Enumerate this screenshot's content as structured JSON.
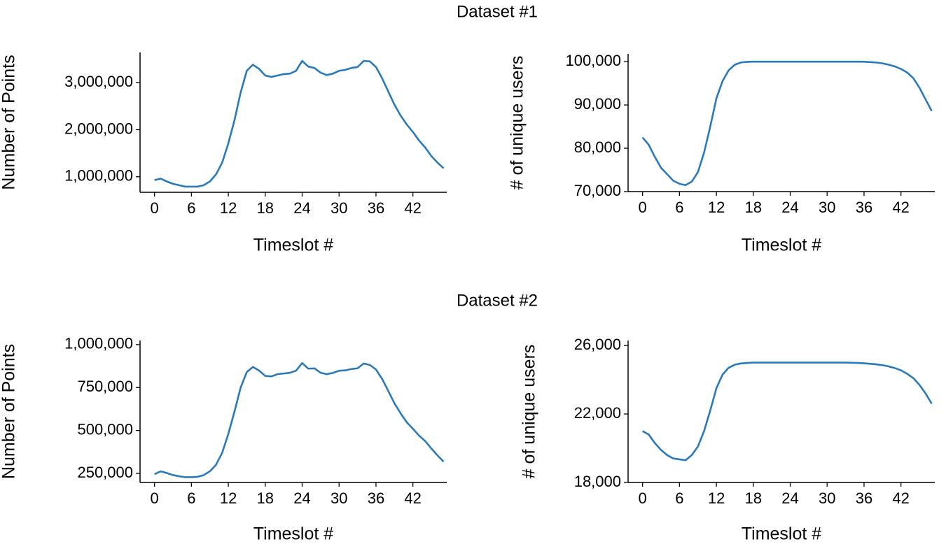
{
  "titles": [
    "Dataset #1",
    "Dataset #2"
  ],
  "chart_data": [
    {
      "type": "line",
      "xlabel": "Timeslot #",
      "ylabel": "Number of Points",
      "color": "#2a7ab9",
      "x": [
        0,
        1,
        2,
        3,
        4,
        5,
        6,
        7,
        8,
        9,
        10,
        11,
        12,
        13,
        14,
        15,
        16,
        17,
        18,
        19,
        20,
        21,
        22,
        23,
        24,
        25,
        26,
        27,
        28,
        29,
        30,
        31,
        32,
        33,
        34,
        35,
        36,
        37,
        38,
        39,
        40,
        41,
        42,
        43,
        44,
        45,
        46,
        47
      ],
      "values": [
        930000,
        960000,
        900000,
        850000,
        820000,
        790000,
        790000,
        790000,
        820000,
        900000,
        1050000,
        1300000,
        1710000,
        2200000,
        2790000,
        3250000,
        3380000,
        3290000,
        3150000,
        3120000,
        3150000,
        3180000,
        3190000,
        3250000,
        3460000,
        3340000,
        3310000,
        3210000,
        3160000,
        3190000,
        3250000,
        3270000,
        3310000,
        3330000,
        3460000,
        3450000,
        3330000,
        3090000,
        2810000,
        2530000,
        2300000,
        2110000,
        1950000,
        1770000,
        1620000,
        1440000,
        1300000,
        1180000
      ],
      "xlim": [
        -2.35,
        47.5
      ],
      "ylim": [
        670000,
        3640000
      ],
      "xticks": [
        0,
        6,
        12,
        18,
        24,
        30,
        36,
        42
      ],
      "yticks": [
        {
          "value": 1000000,
          "label": "1,000,000"
        },
        {
          "value": 2000000,
          "label": "2,000,000"
        },
        {
          "value": 3000000,
          "label": "3,000,000"
        }
      ]
    },
    {
      "type": "line",
      "xlabel": "Timeslot #",
      "ylabel": "# of unique users",
      "color": "#2a7ab9",
      "x": [
        0,
        1,
        2,
        3,
        4,
        5,
        6,
        7,
        8,
        9,
        10,
        11,
        12,
        13,
        14,
        15,
        16,
        17,
        18,
        19,
        20,
        21,
        22,
        23,
        24,
        25,
        26,
        27,
        28,
        29,
        30,
        31,
        32,
        33,
        34,
        35,
        36,
        37,
        38,
        39,
        40,
        41,
        42,
        43,
        44,
        45,
        46,
        47
      ],
      "values": [
        82500,
        80800,
        78000,
        75500,
        74000,
        72500,
        71800,
        71500,
        72300,
        74500,
        79000,
        85000,
        91500,
        95500,
        98000,
        99300,
        99800,
        99950,
        100000,
        100000,
        100000,
        100000,
        100000,
        100000,
        100000,
        100000,
        100000,
        100000,
        100000,
        100000,
        100000,
        100000,
        100000,
        100000,
        100000,
        100000,
        99980,
        99900,
        99800,
        99600,
        99300,
        98900,
        98300,
        97500,
        96200,
        94000,
        91300,
        88600
      ],
      "xlim": [
        -2.35,
        47.5
      ],
      "ylim": [
        70000,
        101800
      ],
      "xticks": [
        0,
        6,
        12,
        18,
        24,
        30,
        36,
        42
      ],
      "yticks": [
        {
          "value": 70000,
          "label": "70,000"
        },
        {
          "value": 80000,
          "label": "80,000"
        },
        {
          "value": 90000,
          "label": "90,000"
        },
        {
          "value": 100000,
          "label": "100,000"
        }
      ]
    },
    {
      "type": "line",
      "xlabel": "Timeslot #",
      "ylabel": "Number of Points",
      "color": "#2a7ab9",
      "x": [
        0,
        1,
        2,
        3,
        4,
        5,
        6,
        7,
        8,
        9,
        10,
        11,
        12,
        13,
        14,
        15,
        16,
        17,
        18,
        19,
        20,
        21,
        22,
        23,
        24,
        25,
        26,
        27,
        28,
        29,
        30,
        31,
        32,
        33,
        34,
        35,
        36,
        37,
        38,
        39,
        40,
        41,
        42,
        43,
        44,
        45,
        46,
        47
      ],
      "values": [
        245000,
        262000,
        252000,
        240000,
        233000,
        228000,
        228000,
        230000,
        240000,
        262000,
        300000,
        370000,
        480000,
        610000,
        750000,
        840000,
        870000,
        849000,
        818000,
        815000,
        828000,
        832000,
        836000,
        848000,
        893000,
        860000,
        862000,
        836000,
        828000,
        835000,
        848000,
        850000,
        858000,
        862000,
        890000,
        882000,
        855000,
        800000,
        730000,
        658000,
        600000,
        548000,
        510000,
        470000,
        438000,
        395000,
        355000,
        318000
      ],
      "xlim": [
        -2.35,
        47.5
      ],
      "ylim": [
        197000,
        1024000
      ],
      "xticks": [
        0,
        6,
        12,
        18,
        24,
        30,
        36,
        42
      ],
      "yticks": [
        {
          "value": 250000,
          "label": "250,000"
        },
        {
          "value": 500000,
          "label": "500,000"
        },
        {
          "value": 750000,
          "label": "750,000"
        },
        {
          "value": 1000000,
          "label": "1,000,000"
        }
      ]
    },
    {
      "type": "line",
      "xlabel": "Timeslot #",
      "ylabel": "# of unique users",
      "color": "#2a7ab9",
      "x": [
        0,
        1,
        2,
        3,
        4,
        5,
        6,
        7,
        8,
        9,
        10,
        11,
        12,
        13,
        14,
        15,
        16,
        17,
        18,
        19,
        20,
        21,
        22,
        23,
        24,
        25,
        26,
        27,
        28,
        29,
        30,
        31,
        32,
        33,
        34,
        35,
        36,
        37,
        38,
        39,
        40,
        41,
        42,
        43,
        44,
        45,
        46,
        47
      ],
      "values": [
        21000,
        20800,
        20300,
        19900,
        19600,
        19400,
        19350,
        19300,
        19600,
        20100,
        21000,
        22200,
        23500,
        24300,
        24700,
        24880,
        24950,
        24980,
        25000,
        25000,
        25000,
        25000,
        25000,
        25000,
        25000,
        25000,
        25000,
        25000,
        25000,
        25000,
        25000,
        25000,
        25000,
        25000,
        24990,
        24980,
        24960,
        24930,
        24900,
        24850,
        24780,
        24680,
        24550,
        24350,
        24100,
        23700,
        23200,
        22600
      ],
      "xlim": [
        -2.35,
        47.5
      ],
      "ylim": [
        18000,
        26290
      ],
      "xticks": [
        0,
        6,
        12,
        18,
        24,
        30,
        36,
        42
      ],
      "yticks": [
        {
          "value": 18000,
          "label": "18,000"
        },
        {
          "value": 22000,
          "label": "22,000"
        },
        {
          "value": 26000,
          "label": "26,000"
        }
      ]
    }
  ]
}
